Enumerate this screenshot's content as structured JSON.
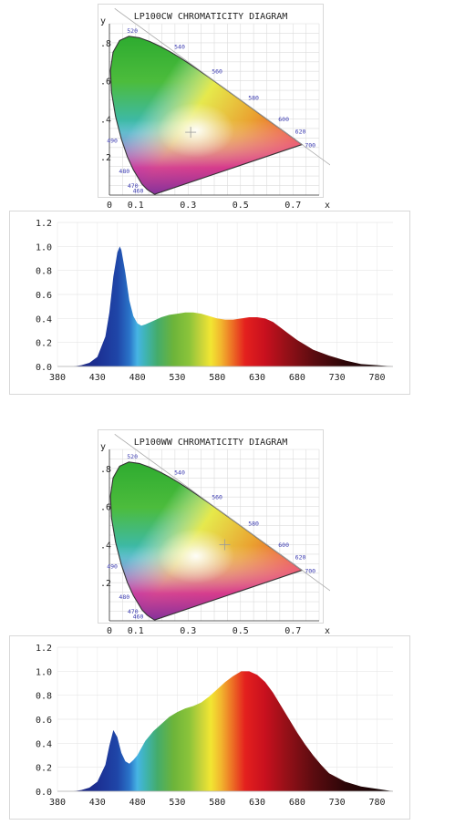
{
  "chart_data": [
    {
      "type": "chromaticity",
      "title": "LP100CW CHROMATICITY DIAGRAM",
      "xlabel": "x",
      "ylabel": "y",
      "x_ticks": [
        "0",
        "0.1",
        "0.3",
        "0.5",
        "0.7"
      ],
      "x_tick_values": [
        0,
        0.1,
        0.3,
        0.5,
        0.7
      ],
      "y_ticks": [
        ".2",
        ".4",
        ".6",
        ".8"
      ],
      "y_tick_values": [
        0.2,
        0.4,
        0.6,
        0.8
      ],
      "xlim": [
        0,
        0.8
      ],
      "ylim": [
        0,
        0.9
      ],
      "wavelength_labels": [
        {
          "text": "460",
          "x": 0.144,
          "y": 0.03
        },
        {
          "text": "470",
          "x": 0.124,
          "y": 0.058
        },
        {
          "text": "480",
          "x": 0.091,
          "y": 0.133
        },
        {
          "text": "490",
          "x": 0.045,
          "y": 0.295
        },
        {
          "text": "520",
          "x": 0.074,
          "y": 0.834
        },
        {
          "text": "540",
          "x": 0.23,
          "y": 0.754
        },
        {
          "text": "560",
          "x": 0.373,
          "y": 0.624
        },
        {
          "text": "580",
          "x": 0.512,
          "y": 0.487
        },
        {
          "text": "600",
          "x": 0.627,
          "y": 0.373
        },
        {
          "text": "620",
          "x": 0.691,
          "y": 0.308
        },
        {
          "text": "700",
          "x": 0.735,
          "y": 0.265
        }
      ],
      "white_point": {
        "x": 0.31,
        "y": 0.33
      },
      "grid": true
    },
    {
      "type": "area",
      "xlim": [
        380,
        800
      ],
      "ylim": [
        0,
        1.2
      ],
      "x_ticks": [
        380,
        430,
        480,
        530,
        580,
        630,
        680,
        730,
        780
      ],
      "y_ticks": [
        "0.0",
        "0.2",
        "0.4",
        "0.6",
        "0.8",
        "1.0",
        "1.2"
      ],
      "y_tick_values": [
        0,
        0.2,
        0.4,
        0.6,
        0.8,
        1.0,
        1.2
      ],
      "grid": true,
      "x": [
        400,
        410,
        420,
        430,
        440,
        445,
        450,
        455,
        458,
        460,
        465,
        470,
        475,
        480,
        485,
        490,
        500,
        510,
        520,
        530,
        540,
        550,
        560,
        570,
        580,
        590,
        600,
        610,
        620,
        630,
        640,
        650,
        660,
        670,
        680,
        690,
        700,
        720,
        740,
        760,
        780,
        800
      ],
      "values": [
        0.0,
        0.01,
        0.03,
        0.08,
        0.25,
        0.45,
        0.75,
        0.95,
        1.0,
        0.97,
        0.78,
        0.55,
        0.42,
        0.36,
        0.34,
        0.35,
        0.38,
        0.41,
        0.43,
        0.44,
        0.45,
        0.45,
        0.44,
        0.42,
        0.4,
        0.39,
        0.39,
        0.4,
        0.41,
        0.41,
        0.4,
        0.37,
        0.32,
        0.27,
        0.22,
        0.18,
        0.14,
        0.09,
        0.05,
        0.02,
        0.01,
        0.0
      ]
    },
    {
      "type": "chromaticity",
      "title": "LP100WW CHROMATICITY DIAGRAM",
      "xlabel": "x",
      "ylabel": "y",
      "x_ticks": [
        "0",
        "0.1",
        "0.3",
        "0.5",
        "0.7"
      ],
      "x_tick_values": [
        0,
        0.1,
        0.3,
        0.5,
        0.7
      ],
      "y_ticks": [
        ".2",
        ".4",
        ".6",
        ".8"
      ],
      "y_tick_values": [
        0.2,
        0.4,
        0.6,
        0.8
      ],
      "xlim": [
        0,
        0.8
      ],
      "ylim": [
        0,
        0.9
      ],
      "wavelength_labels": [
        {
          "text": "460",
          "x": 0.144,
          "y": 0.03
        },
        {
          "text": "470",
          "x": 0.124,
          "y": 0.058
        },
        {
          "text": "480",
          "x": 0.091,
          "y": 0.133
        },
        {
          "text": "490",
          "x": 0.045,
          "y": 0.295
        },
        {
          "text": "520",
          "x": 0.074,
          "y": 0.834
        },
        {
          "text": "540",
          "x": 0.23,
          "y": 0.754
        },
        {
          "text": "560",
          "x": 0.373,
          "y": 0.624
        },
        {
          "text": "580",
          "x": 0.512,
          "y": 0.487
        },
        {
          "text": "600",
          "x": 0.627,
          "y": 0.373
        },
        {
          "text": "620",
          "x": 0.691,
          "y": 0.308
        },
        {
          "text": "700",
          "x": 0.735,
          "y": 0.265
        }
      ],
      "white_point": {
        "x": 0.44,
        "y": 0.4
      },
      "grid": true
    },
    {
      "type": "area",
      "xlim": [
        380,
        800
      ],
      "ylim": [
        0,
        1.2
      ],
      "x_ticks": [
        380,
        430,
        480,
        530,
        580,
        630,
        680,
        730,
        780
      ],
      "y_ticks": [
        "0.0",
        "0.2",
        "0.4",
        "0.6",
        "0.8",
        "1.0",
        "1.2"
      ],
      "y_tick_values": [
        0,
        0.2,
        0.4,
        0.6,
        0.8,
        1.0,
        1.2
      ],
      "grid": true,
      "x": [
        400,
        410,
        420,
        430,
        440,
        445,
        450,
        455,
        460,
        465,
        470,
        475,
        480,
        485,
        490,
        500,
        510,
        520,
        530,
        540,
        550,
        560,
        570,
        580,
        590,
        600,
        610,
        620,
        630,
        640,
        650,
        660,
        670,
        680,
        690,
        700,
        710,
        720,
        740,
        760,
        780,
        800
      ],
      "values": [
        0.0,
        0.01,
        0.03,
        0.08,
        0.22,
        0.38,
        0.51,
        0.45,
        0.32,
        0.25,
        0.23,
        0.26,
        0.3,
        0.36,
        0.42,
        0.5,
        0.56,
        0.62,
        0.66,
        0.69,
        0.71,
        0.74,
        0.79,
        0.85,
        0.91,
        0.96,
        1.0,
        1.0,
        0.97,
        0.91,
        0.82,
        0.71,
        0.6,
        0.49,
        0.39,
        0.3,
        0.22,
        0.15,
        0.08,
        0.04,
        0.02,
        0.0
      ]
    }
  ]
}
